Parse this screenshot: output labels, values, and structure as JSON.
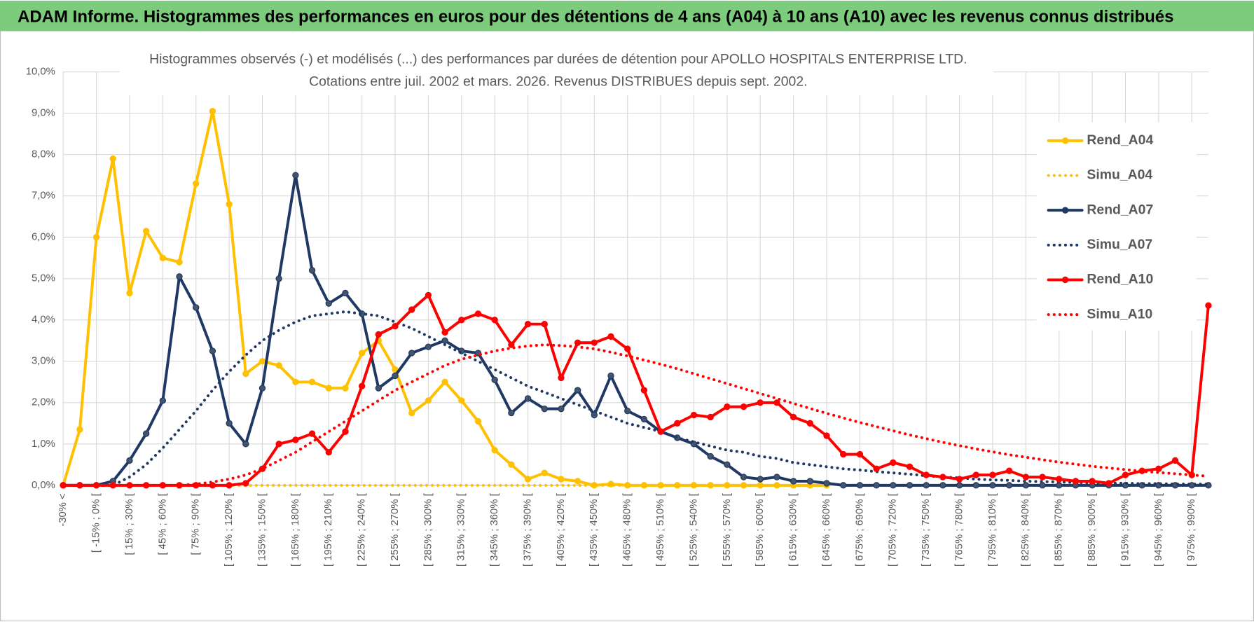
{
  "header": {
    "title": "ADAM Informe. Histogrammes des performances en euros pour des détentions de 4 ans (A04) à 10 ans (A10) avec les revenus connus distribués"
  },
  "chart_data": {
    "type": "line",
    "title": "Histogrammes observés (-) et modélisés (...) des performances par durées de détention pour APOLLO HOSPITALS ENTERPRISE LTD.",
    "subtitle": "Cotations entre juil. 2002 et mars. 2026. Revenus DISTRIBUES depuis sept. 2002.",
    "categories": [
      "-30% <",
      null,
      "[ -15% ; 0% [",
      null,
      "[ 15% ; 30% [",
      null,
      "[ 45% ; 60% [",
      null,
      "[ 75% ; 90% [",
      null,
      "[ 105% ; 120% [",
      null,
      "[ 135% ; 150% [",
      null,
      "[ 165% ; 180% [",
      null,
      "[ 195% ; 210% [",
      null,
      "[ 225% ; 240% [",
      null,
      "[ 255% ; 270% [",
      null,
      "[ 285% ; 300% [",
      null,
      "[ 315% ; 330% [",
      null,
      "[ 345% ; 360% [",
      null,
      "[ 375% ; 390% [",
      null,
      "[ 405% ; 420% [",
      null,
      "[ 435% ; 450% [",
      null,
      "[ 465% ; 480% [",
      null,
      "[ 495% ; 510% [",
      null,
      "[ 525% ; 540% [",
      null,
      "[ 555% ; 570% [",
      null,
      "[ 585% ; 600% [",
      null,
      "[ 615% ; 630% [",
      null,
      "[ 645% ; 660% [",
      null,
      "[ 675% ; 690% [",
      null,
      "[ 705% ; 720% [",
      null,
      "[ 735% ; 750% [",
      null,
      "[ 765% ; 780% [",
      null,
      "[ 795% ; 810% [",
      null,
      "[ 825% ; 840% [",
      null,
      "[ 855% ; 870% [",
      null,
      "[ 885% ; 900% [",
      null,
      "[ 915% ; 930% [",
      null,
      "[ 945% ; 960% [",
      null,
      "[ 975% ; 990% [",
      null
    ],
    "series": [
      {
        "name": "Rend_A04",
        "color": "#FFC000",
        "style": "solid",
        "markers": true,
        "values": [
          0,
          1.35,
          6.0,
          7.9,
          4.65,
          6.15,
          5.5,
          5.4,
          7.3,
          9.05,
          6.8,
          2.7,
          3.0,
          2.9,
          2.5,
          2.5,
          2.35,
          2.35,
          3.2,
          3.5,
          2.8,
          1.75,
          2.05,
          2.5,
          2.05,
          1.55,
          0.85,
          0.5,
          0.15,
          0.3,
          0.15,
          0.1,
          0,
          0.03,
          0,
          0,
          0,
          0,
          0,
          0,
          0,
          0,
          0,
          0,
          0,
          0,
          0,
          null,
          null,
          null,
          null,
          null,
          null,
          null,
          null,
          null,
          null,
          null,
          null,
          null,
          null,
          null,
          null,
          null,
          null,
          null,
          null,
          null,
          null,
          null
        ]
      },
      {
        "name": "Simu_A04",
        "color": "#FFC000",
        "style": "dotted",
        "markers": false,
        "values": [
          0,
          0,
          0,
          0,
          0,
          0,
          0,
          0,
          0,
          0,
          0,
          0,
          0,
          0,
          0,
          0,
          0,
          0,
          0,
          0,
          0,
          0,
          0,
          0,
          0,
          0,
          0,
          0,
          0,
          0,
          0,
          0,
          0,
          0,
          0,
          0,
          0,
          0,
          0,
          0,
          0,
          0,
          0,
          0,
          0,
          0,
          0,
          null,
          null,
          null,
          null,
          null,
          null,
          null,
          null,
          null,
          null,
          null,
          null,
          null,
          null,
          null,
          null,
          null,
          null,
          null,
          null,
          null,
          null,
          null
        ]
      },
      {
        "name": "Rend_A07",
        "color": "#1F3864",
        "style": "solid",
        "markers": true,
        "values": [
          0,
          0,
          0,
          0.1,
          0.6,
          1.25,
          2.05,
          5.05,
          4.3,
          3.25,
          1.5,
          1.0,
          2.35,
          5.0,
          7.5,
          5.2,
          4.4,
          4.65,
          4.15,
          2.35,
          2.65,
          3.2,
          3.35,
          3.5,
          3.25,
          3.2,
          2.55,
          1.75,
          2.1,
          1.85,
          1.85,
          2.3,
          1.7,
          2.65,
          1.8,
          1.6,
          1.3,
          1.15,
          1.0,
          0.7,
          0.5,
          0.2,
          0.15,
          0.2,
          0.1,
          0.1,
          0.05,
          0,
          0,
          0,
          0,
          0,
          0,
          0,
          0,
          0,
          0,
          0,
          0,
          0,
          0,
          0,
          0,
          0,
          0,
          0,
          0,
          0,
          0,
          0
        ]
      },
      {
        "name": "Simu_A07",
        "color": "#1F3864",
        "style": "dotted",
        "markers": false,
        "values": [
          0,
          0,
          0,
          0,
          0.2,
          0.5,
          0.9,
          1.35,
          1.8,
          2.3,
          2.75,
          3.15,
          3.5,
          3.75,
          3.95,
          4.1,
          4.15,
          4.2,
          4.15,
          4.1,
          3.95,
          3.8,
          3.6,
          3.4,
          3.2,
          3.0,
          2.8,
          2.6,
          2.4,
          2.25,
          2.1,
          1.95,
          1.8,
          1.65,
          1.5,
          1.4,
          1.3,
          1.15,
          1.05,
          0.95,
          0.85,
          0.8,
          0.7,
          0.65,
          0.55,
          0.5,
          0.45,
          0.4,
          0.37,
          0.33,
          0.3,
          0.27,
          0.23,
          0.2,
          0.18,
          0.15,
          0.13,
          0.12,
          0.1,
          0.09,
          0.08,
          0.07,
          0.06,
          0.05,
          0.05,
          0.04,
          0.04,
          0.03,
          0.03,
          0.03
        ]
      },
      {
        "name": "Rend_A10",
        "color": "#FF0000",
        "style": "solid",
        "markers": true,
        "values": [
          0,
          0,
          0,
          0,
          0,
          0,
          0,
          0,
          0,
          0,
          0,
          0.05,
          0.4,
          1.0,
          1.1,
          1.25,
          0.8,
          1.3,
          2.4,
          3.65,
          3.85,
          4.25,
          4.6,
          3.7,
          4.0,
          4.15,
          4.0,
          3.4,
          3.9,
          3.9,
          2.6,
          3.45,
          3.45,
          3.6,
          3.3,
          2.3,
          1.3,
          1.5,
          1.7,
          1.65,
          1.9,
          1.9,
          2.0,
          2.0,
          1.65,
          1.5,
          1.2,
          0.75,
          0.75,
          0.4,
          0.55,
          0.45,
          0.25,
          0.2,
          0.15,
          0.25,
          0.25,
          0.35,
          0.2,
          0.2,
          0.15,
          0.1,
          0.1,
          0.05,
          0.25,
          0.35,
          0.4,
          0.6,
          0.25,
          4.35
        ]
      },
      {
        "name": "Simu_A10",
        "color": "#FF0000",
        "style": "dotted",
        "markers": false,
        "values": [
          0,
          0,
          0,
          0,
          0,
          0,
          0,
          0,
          0.03,
          0.08,
          0.15,
          0.25,
          0.4,
          0.6,
          0.8,
          1.05,
          1.3,
          1.55,
          1.8,
          2.05,
          2.3,
          2.5,
          2.7,
          2.9,
          3.05,
          3.15,
          3.25,
          3.32,
          3.37,
          3.4,
          3.38,
          3.35,
          3.3,
          3.22,
          3.13,
          3.03,
          2.93,
          2.82,
          2.7,
          2.58,
          2.46,
          2.34,
          2.22,
          2.1,
          1.98,
          1.86,
          1.74,
          1.63,
          1.52,
          1.42,
          1.32,
          1.22,
          1.13,
          1.04,
          0.96,
          0.88,
          0.81,
          0.74,
          0.68,
          0.62,
          0.56,
          0.51,
          0.46,
          0.42,
          0.38,
          0.34,
          0.31,
          0.28,
          0.25,
          0.22
        ]
      }
    ],
    "ylim": [
      0,
      10
    ],
    "yticks": [
      {
        "value": 0,
        "label": "0,0%"
      },
      {
        "value": 1,
        "label": "1,0%"
      },
      {
        "value": 2,
        "label": "2,0%"
      },
      {
        "value": 3,
        "label": "3,0%"
      },
      {
        "value": 4,
        "label": "4,0%"
      },
      {
        "value": 5,
        "label": "5,0%"
      },
      {
        "value": 6,
        "label": "6,0%"
      },
      {
        "value": 7,
        "label": "7,0%"
      },
      {
        "value": 8,
        "label": "8,0%"
      },
      {
        "value": 9,
        "label": "9,0%"
      },
      {
        "value": 10,
        "label": "10,0%"
      }
    ],
    "grid": true,
    "legend": "right"
  }
}
